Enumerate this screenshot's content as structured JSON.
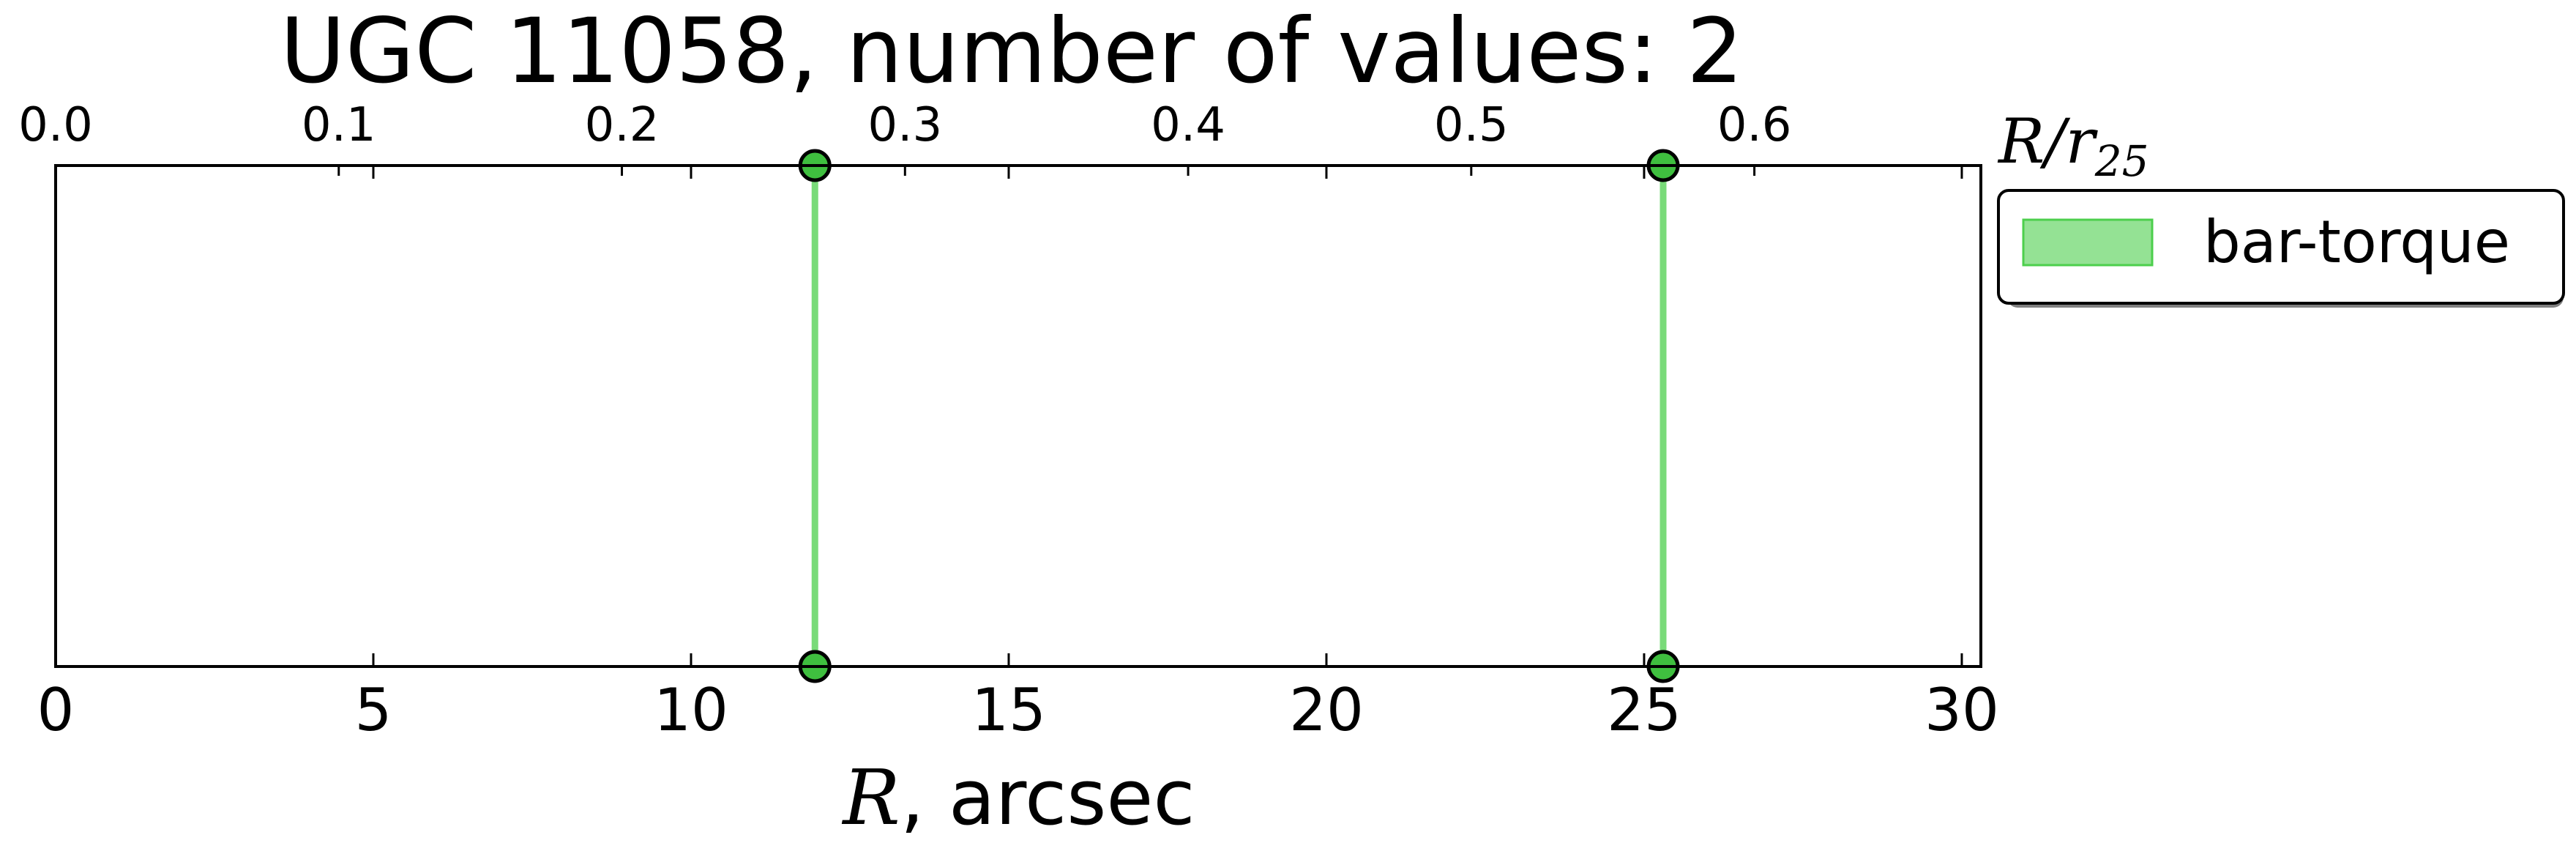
{
  "chart_data": {
    "type": "line",
    "title": "UGC 11058, number of values: 2",
    "xlabel_italic": "R",
    "xlabel_rest": ", arcsec",
    "top_xlabel_main": "R/r",
    "top_xlabel_sub": "25",
    "xlim": [
      0,
      30.3
    ],
    "xticks": [
      0,
      5,
      10,
      15,
      20,
      25,
      30
    ],
    "top_xlim": [
      0.0,
      0.68
    ],
    "top_xticks": [
      "0.0",
      "0.1",
      "0.2",
      "0.3",
      "0.4",
      "0.5",
      "0.6"
    ],
    "grid": false,
    "legend_placement": "outside-top-right",
    "series": [
      {
        "name": "bar-torque",
        "color": "#4ccf4c",
        "marker_color": "#3fbf3f",
        "x_values": [
          11.95,
          25.3
        ]
      }
    ]
  }
}
